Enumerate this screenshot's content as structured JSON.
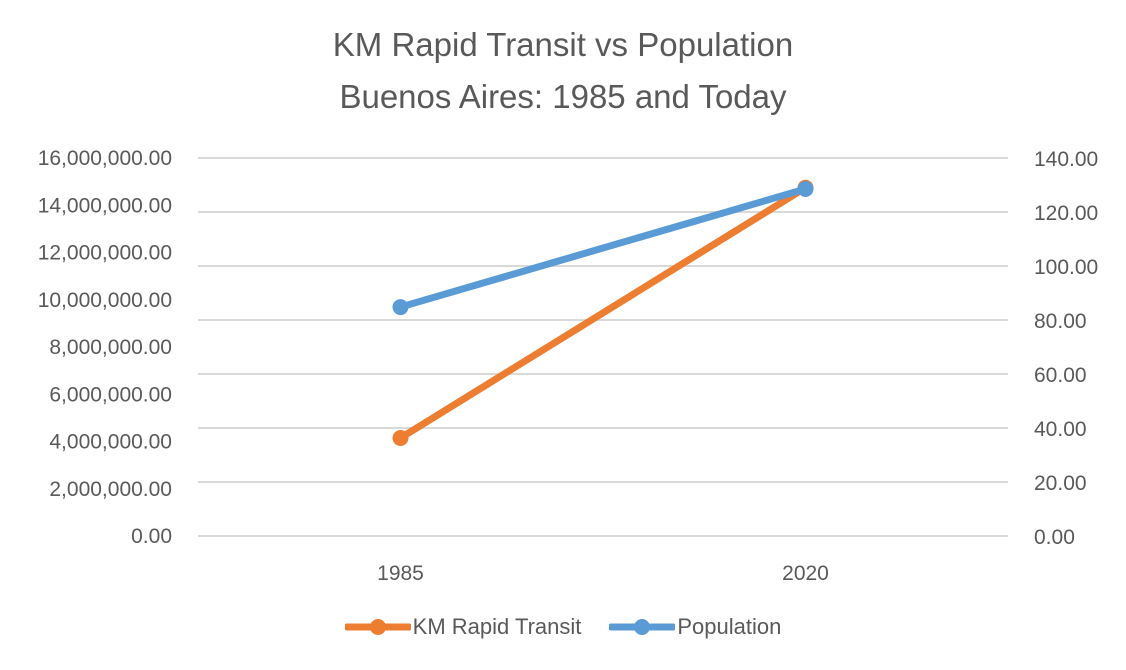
{
  "chart_data": {
    "type": "line",
    "title": [
      "KM Rapid Transit vs Population",
      "Buenos Aires: 1985 and Today"
    ],
    "categories": [
      "1985",
      "2020"
    ],
    "series": [
      {
        "name": "KM Rapid Transit",
        "axis": "right",
        "color": "#ED7D31",
        "values": [
          36.3,
          129
        ]
      },
      {
        "name": "Population",
        "axis": "left",
        "color": "#5B9BD5",
        "values": [
          9690000,
          14690000
        ]
      }
    ],
    "left_axis": {
      "range": [
        0,
        16000000
      ],
      "ticks": [
        "16,000,000.00",
        "14,000,000.00",
        "12,000,000.00",
        "10,000,000.00",
        "8,000,000.00",
        "6,000,000.00",
        "4,000,000.00",
        "2,000,000.00",
        "0.00"
      ]
    },
    "right_axis": {
      "range": [
        0,
        140
      ],
      "ticks": [
        "140.00",
        "120.00",
        "100.00",
        "80.00",
        "60.00",
        "40.00",
        "20.00",
        "0.00"
      ]
    },
    "grid": true,
    "legend_position": "bottom"
  }
}
